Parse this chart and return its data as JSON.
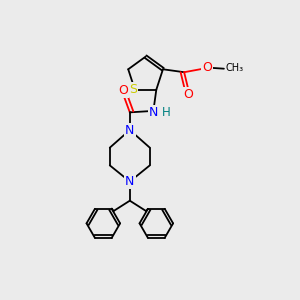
{
  "bg_color": "#ebebeb",
  "atom_colors": {
    "S": "#cccc00",
    "N": "#0000ff",
    "O": "#ff0000",
    "C": "#000000",
    "H": "#008080"
  },
  "bond_color": "#000000",
  "font_size": 7.5,
  "lw": 1.3
}
